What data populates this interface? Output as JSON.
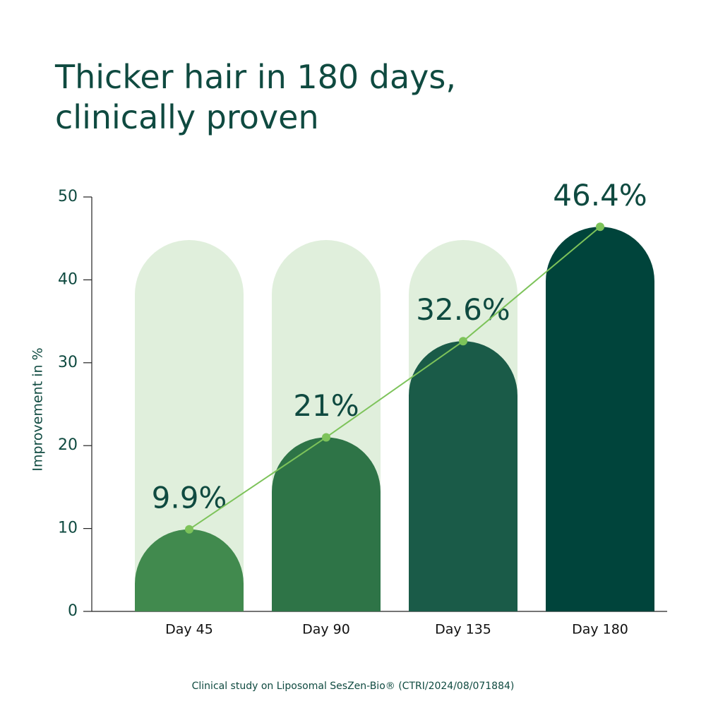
{
  "chart_data": {
    "type": "bar",
    "title": [
      "Thicker hair in 180 days,",
      "clinically proven"
    ],
    "y_label": "Improvement in %",
    "categories": [
      "Day 45",
      "Day 90",
      "Day 135",
      "Day 180"
    ],
    "values": [
      9.9,
      21,
      32.6,
      46.4
    ],
    "value_labels": [
      "9.9%",
      "21%",
      "32.6%",
      "46.4%"
    ],
    "colors": [
      "#418a4e",
      "#2e7447",
      "#1a5b48",
      "#00443b"
    ],
    "line_color": "#7dc35a",
    "ylim": [
      0,
      50
    ],
    "yticks": [
      0,
      10,
      20,
      30,
      40,
      50
    ],
    "footnote": "Clinical study on Liposomal SesZen-Bio® (CTRI/2024/08/071884)"
  }
}
